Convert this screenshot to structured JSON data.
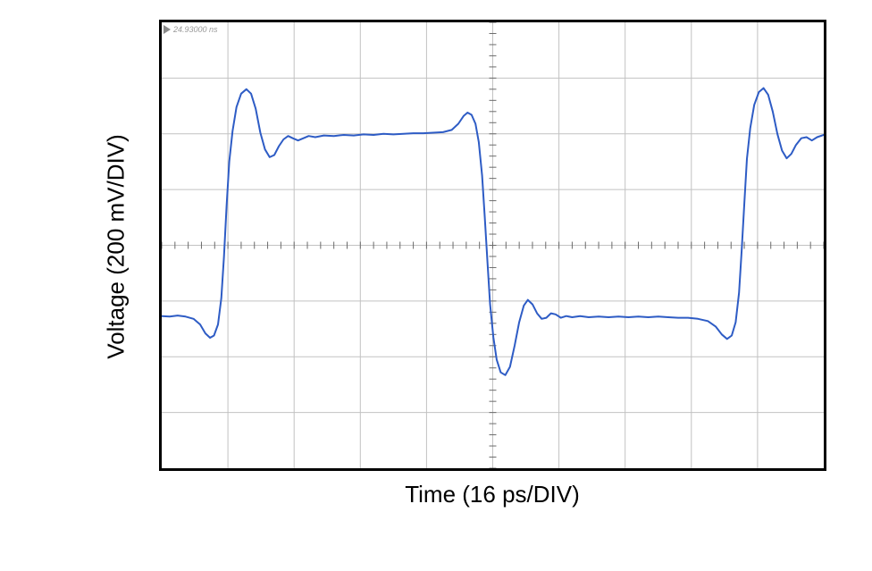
{
  "annotation": {
    "marker_icon": "flag-triangle",
    "text": "24.93000 ns"
  },
  "axes": {
    "x_label": "Time (16 ps/DIV)",
    "y_label": "Voltage (200 mV/DIV)"
  },
  "chart_data": {
    "type": "line",
    "title": "",
    "xlabel": "Time (16 ps/DIV)",
    "ylabel": "Voltage (200 mV/DIV)",
    "x_divisions": 10,
    "y_divisions": 8,
    "x_scale_per_div": "16 ps",
    "y_scale_per_div": "200 mV",
    "grid": true,
    "legend": "none",
    "minor_ticks_per_div": 5,
    "colors": {
      "trace": "#2e5cc5",
      "grid": "#c2c2c2",
      "ticks": "#6a6a6a",
      "border": "#000000"
    },
    "series": [
      {
        "name": "oscilloscope-waveform",
        "points": [
          [
            0.0,
            5.27
          ],
          [
            0.12,
            5.28
          ],
          [
            0.24,
            5.26
          ],
          [
            0.36,
            5.28
          ],
          [
            0.48,
            5.32
          ],
          [
            0.58,
            5.42
          ],
          [
            0.66,
            5.58
          ],
          [
            0.73,
            5.66
          ],
          [
            0.79,
            5.62
          ],
          [
            0.85,
            5.42
          ],
          [
            0.9,
            4.95
          ],
          [
            0.94,
            4.2
          ],
          [
            0.98,
            3.3
          ],
          [
            1.02,
            2.5
          ],
          [
            1.07,
            1.95
          ],
          [
            1.13,
            1.52
          ],
          [
            1.2,
            1.28
          ],
          [
            1.28,
            1.2
          ],
          [
            1.35,
            1.28
          ],
          [
            1.42,
            1.55
          ],
          [
            1.49,
            1.98
          ],
          [
            1.56,
            2.28
          ],
          [
            1.63,
            2.42
          ],
          [
            1.7,
            2.38
          ],
          [
            1.77,
            2.22
          ],
          [
            1.84,
            2.1
          ],
          [
            1.91,
            2.04
          ],
          [
            1.98,
            2.08
          ],
          [
            2.06,
            2.12
          ],
          [
            2.14,
            2.08
          ],
          [
            2.22,
            2.04
          ],
          [
            2.32,
            2.06
          ],
          [
            2.45,
            2.03
          ],
          [
            2.6,
            2.04
          ],
          [
            2.75,
            2.02
          ],
          [
            2.9,
            2.03
          ],
          [
            3.05,
            2.01
          ],
          [
            3.2,
            2.02
          ],
          [
            3.35,
            2.0
          ],
          [
            3.5,
            2.01
          ],
          [
            3.65,
            2.0
          ],
          [
            3.8,
            1.99
          ],
          [
            3.95,
            1.99
          ],
          [
            4.1,
            1.98
          ],
          [
            4.25,
            1.97
          ],
          [
            4.38,
            1.93
          ],
          [
            4.48,
            1.82
          ],
          [
            4.56,
            1.68
          ],
          [
            4.62,
            1.62
          ],
          [
            4.68,
            1.66
          ],
          [
            4.74,
            1.82
          ],
          [
            4.79,
            2.15
          ],
          [
            4.84,
            2.75
          ],
          [
            4.88,
            3.5
          ],
          [
            4.92,
            4.3
          ],
          [
            4.96,
            5.05
          ],
          [
            5.01,
            5.65
          ],
          [
            5.06,
            6.05
          ],
          [
            5.12,
            6.28
          ],
          [
            5.19,
            6.33
          ],
          [
            5.26,
            6.18
          ],
          [
            5.33,
            5.8
          ],
          [
            5.4,
            5.38
          ],
          [
            5.47,
            5.08
          ],
          [
            5.53,
            4.98
          ],
          [
            5.6,
            5.06
          ],
          [
            5.67,
            5.22
          ],
          [
            5.74,
            5.32
          ],
          [
            5.81,
            5.3
          ],
          [
            5.88,
            5.22
          ],
          [
            5.95,
            5.24
          ],
          [
            6.03,
            5.3
          ],
          [
            6.11,
            5.27
          ],
          [
            6.2,
            5.29
          ],
          [
            6.32,
            5.27
          ],
          [
            6.45,
            5.29
          ],
          [
            6.6,
            5.28
          ],
          [
            6.75,
            5.29
          ],
          [
            6.9,
            5.28
          ],
          [
            7.05,
            5.29
          ],
          [
            7.2,
            5.28
          ],
          [
            7.35,
            5.29
          ],
          [
            7.5,
            5.28
          ],
          [
            7.65,
            5.29
          ],
          [
            7.8,
            5.3
          ],
          [
            7.95,
            5.3
          ],
          [
            8.1,
            5.32
          ],
          [
            8.25,
            5.36
          ],
          [
            8.37,
            5.46
          ],
          [
            8.46,
            5.6
          ],
          [
            8.54,
            5.68
          ],
          [
            8.61,
            5.62
          ],
          [
            8.67,
            5.38
          ],
          [
            8.72,
            4.85
          ],
          [
            8.76,
            4.1
          ],
          [
            8.8,
            3.25
          ],
          [
            8.84,
            2.45
          ],
          [
            8.89,
            1.9
          ],
          [
            8.95,
            1.48
          ],
          [
            9.02,
            1.25
          ],
          [
            9.09,
            1.18
          ],
          [
            9.16,
            1.3
          ],
          [
            9.23,
            1.6
          ],
          [
            9.3,
            2.0
          ],
          [
            9.37,
            2.3
          ],
          [
            9.44,
            2.44
          ],
          [
            9.51,
            2.36
          ],
          [
            9.58,
            2.2
          ],
          [
            9.66,
            2.08
          ],
          [
            9.74,
            2.06
          ],
          [
            9.82,
            2.12
          ],
          [
            9.9,
            2.06
          ],
          [
            10.0,
            2.02
          ]
        ]
      }
    ]
  }
}
